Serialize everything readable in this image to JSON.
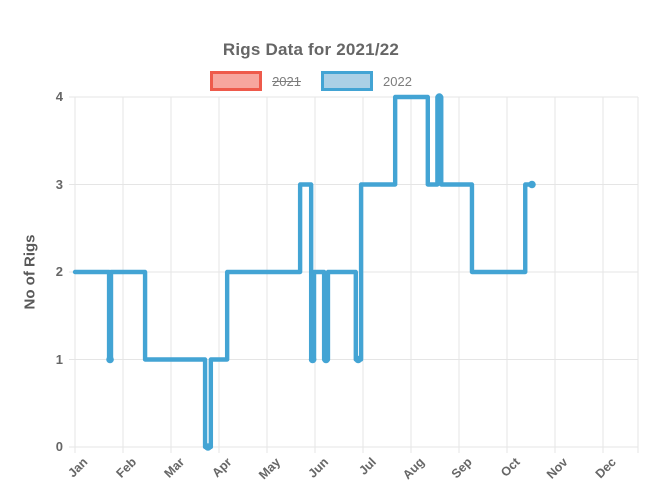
{
  "chart_data": {
    "type": "line",
    "stepped": true,
    "title": "Rigs Data for 2021/22",
    "xlabel": "",
    "ylabel": "No of Rigs",
    "ylim": [
      0,
      4
    ],
    "yticks": [
      0,
      1,
      2,
      3,
      4
    ],
    "categories": [
      "Jan",
      "Feb",
      "Mar",
      "Apr",
      "May",
      "Jun",
      "Jul",
      "Aug",
      "Sep",
      "Oct",
      "Nov",
      "Dec"
    ],
    "x_unit": "months from Jan (fractional part = day within month)",
    "legend_position": "top",
    "grid": true,
    "grid_color": "#e5e5e5",
    "series": [
      {
        "name": "2021",
        "hidden": true,
        "color": "#ee5a4b",
        "fill": "#f7a69e",
        "steps": [],
        "markers": []
      },
      {
        "name": "2022",
        "hidden": false,
        "color": "#43a4d4",
        "fill": "#abd0e6",
        "steps": [
          {
            "from": 0.0,
            "to": 0.71,
            "value": 2
          },
          {
            "from": 0.71,
            "to": 0.75,
            "value": 1
          },
          {
            "from": 0.75,
            "to": 1.46,
            "value": 2
          },
          {
            "from": 1.46,
            "to": 2.71,
            "value": 1
          },
          {
            "from": 2.71,
            "to": 2.83,
            "value": 0
          },
          {
            "from": 2.83,
            "to": 3.17,
            "value": 1
          },
          {
            "from": 3.17,
            "to": 4.69,
            "value": 2
          },
          {
            "from": 4.69,
            "to": 4.92,
            "value": 3
          },
          {
            "from": 4.92,
            "to": 4.98,
            "value": 1
          },
          {
            "from": 4.98,
            "to": 5.19,
            "value": 2
          },
          {
            "from": 5.19,
            "to": 5.27,
            "value": 1
          },
          {
            "from": 5.27,
            "to": 5.85,
            "value": 2
          },
          {
            "from": 5.85,
            "to": 5.96,
            "value": 1
          },
          {
            "from": 5.96,
            "to": 6.67,
            "value": 3
          },
          {
            "from": 6.67,
            "to": 7.35,
            "value": 4
          },
          {
            "from": 7.35,
            "to": 7.55,
            "value": 3
          },
          {
            "from": 7.55,
            "to": 7.63,
            "value": 4
          },
          {
            "from": 7.63,
            "to": 8.27,
            "value": 3
          },
          {
            "from": 8.27,
            "to": 9.38,
            "value": 2
          },
          {
            "from": 9.38,
            "to": 9.52,
            "value": 3
          }
        ],
        "markers": [
          {
            "x": 0.73,
            "y": 1
          },
          {
            "x": 2.77,
            "y": 0
          },
          {
            "x": 4.95,
            "y": 1
          },
          {
            "x": 5.23,
            "y": 1
          },
          {
            "x": 5.9,
            "y": 1
          },
          {
            "x": 7.59,
            "y": 4
          },
          {
            "x": 9.52,
            "y": 3
          }
        ]
      }
    ]
  }
}
